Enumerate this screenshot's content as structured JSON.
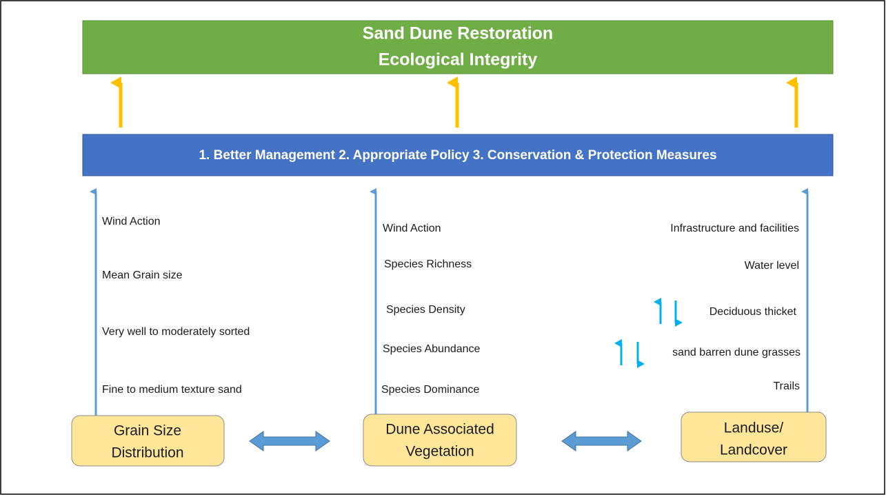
{
  "goal": {
    "lines": [
      "Sand Dune Restoration",
      "Ecological Integrity"
    ]
  },
  "measures": "1. Better Management 2. Appropriate Policy 3. Conservation & Protection Measures",
  "columns": [
    {
      "box": [
        "Grain Size",
        "Distribution"
      ],
      "factors": [
        "Wind Action",
        "Mean Grain size",
        "Very well to moderately sorted",
        "Fine to medium texture sand"
      ]
    },
    {
      "box": [
        "Dune Associated",
        "Vegetation"
      ],
      "factors": [
        "Wind Action",
        "Species Richness",
        "Species Density",
        "Species Abundance",
        "Species Dominance"
      ]
    },
    {
      "box": [
        "Landuse/",
        "Landcover"
      ],
      "factors": [
        "Infrastructure and facilities",
        "Water level",
        "Deciduous thicket",
        "sand barren dune grasses",
        "Trails"
      ]
    }
  ]
}
